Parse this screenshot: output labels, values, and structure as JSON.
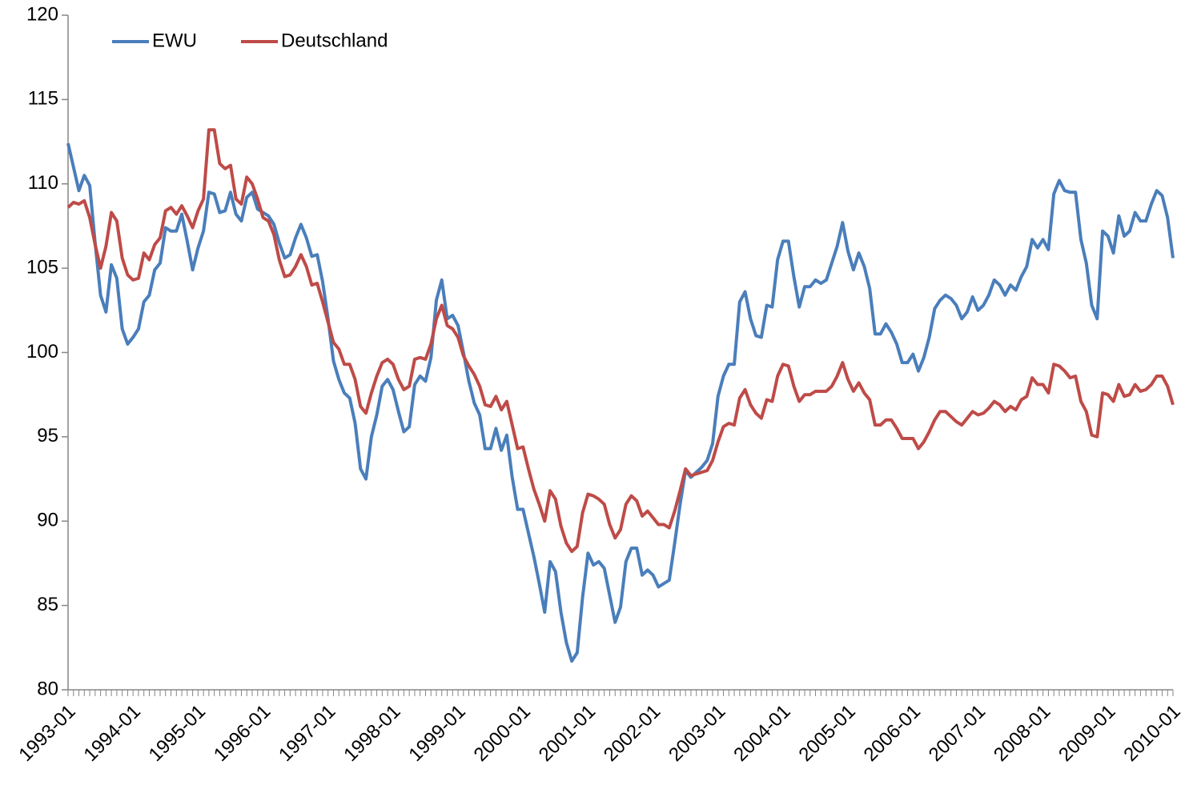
{
  "chart_data": {
    "type": "line",
    "categories": [
      "1993-01",
      null,
      null,
      null,
      null,
      null,
      null,
      null,
      null,
      null,
      null,
      null,
      "1994-01",
      null,
      null,
      null,
      null,
      null,
      null,
      null,
      null,
      null,
      null,
      null,
      "1995-01",
      null,
      null,
      null,
      null,
      null,
      null,
      null,
      null,
      null,
      null,
      null,
      "1996-01",
      null,
      null,
      null,
      null,
      null,
      null,
      null,
      null,
      null,
      null,
      null,
      "1997-01",
      null,
      null,
      null,
      null,
      null,
      null,
      null,
      null,
      null,
      null,
      null,
      "1998-01",
      null,
      null,
      null,
      null,
      null,
      null,
      null,
      null,
      null,
      null,
      null,
      "1999-01",
      null,
      null,
      null,
      null,
      null,
      null,
      null,
      null,
      null,
      null,
      null,
      "2000-01",
      null,
      null,
      null,
      null,
      null,
      null,
      null,
      null,
      null,
      null,
      null,
      "2001-01",
      null,
      null,
      null,
      null,
      null,
      null,
      null,
      null,
      null,
      null,
      null,
      "2002-01",
      null,
      null,
      null,
      null,
      null,
      null,
      null,
      null,
      null,
      null,
      null,
      "2003-01",
      null,
      null,
      null,
      null,
      null,
      null,
      null,
      null,
      null,
      null,
      null,
      "2004-01",
      null,
      null,
      null,
      null,
      null,
      null,
      null,
      null,
      null,
      null,
      null,
      "2005-01",
      null,
      null,
      null,
      null,
      null,
      null,
      null,
      null,
      null,
      null,
      null,
      "2006-01",
      null,
      null,
      null,
      null,
      null,
      null,
      null,
      null,
      null,
      null,
      null,
      "2007-01",
      null,
      null,
      null,
      null,
      null,
      null,
      null,
      null,
      null,
      null,
      null,
      "2008-01",
      null,
      null,
      null,
      null,
      null,
      null,
      null,
      null,
      null,
      null,
      null,
      "2009-01",
      null,
      null,
      null,
      null,
      null,
      null,
      null,
      null,
      null,
      null,
      null,
      "2010-01"
    ],
    "series": [
      {
        "name": "EWU",
        "color": "#4a7ebb",
        "values": [
          112.4,
          111,
          109.6,
          110.5,
          109.9,
          106.5,
          103.4,
          102.4,
          105.2,
          104.4,
          101.4,
          100.5,
          100.9,
          101.4,
          103,
          103.4,
          104.9,
          105.3,
          107.4,
          107.2,
          107.2,
          108.2,
          106.6,
          104.9,
          106.2,
          107.2,
          109.5,
          109.4,
          108.3,
          108.4,
          109.5,
          108.2,
          107.8,
          109.2,
          109.5,
          108.5,
          108.3,
          108.1,
          107.6,
          106.5,
          105.6,
          105.8,
          106.8,
          107.6,
          106.8,
          105.7,
          105.8,
          104.2,
          102,
          99.5,
          98.4,
          97.6,
          97.3,
          95.8,
          93.1,
          92.5,
          95,
          96.3,
          98,
          98.4,
          97.8,
          96.5,
          95.3,
          95.6,
          98.1,
          98.6,
          98.3,
          99.7,
          103.1,
          104.3,
          102,
          102.2,
          101.6,
          100,
          98.3,
          97,
          96.3,
          94.3,
          94.3,
          95.5,
          94.2,
          95.1,
          92.6,
          90.7,
          90.7,
          89.3,
          87.9,
          86.3,
          84.6,
          87.6,
          87,
          84.6,
          82.8,
          81.7,
          82.2,
          85.5,
          88.1,
          87.4,
          87.6,
          87.2,
          85.6,
          84,
          84.9,
          87.6,
          88.4,
          88.4,
          86.8,
          87.1,
          86.8,
          86.1,
          86.3,
          86.5,
          88.7,
          91,
          93,
          92.6,
          92.9,
          93.2,
          93.6,
          94.6,
          97.4,
          98.6,
          99.3,
          99.3,
          103,
          103.6,
          102,
          101,
          100.9,
          102.8,
          102.7,
          105.5,
          106.6,
          106.6,
          104.5,
          102.7,
          103.9,
          103.9,
          104.3,
          104.1,
          104.3,
          105.3,
          106.3,
          107.7,
          106,
          104.9,
          105.9,
          105.1,
          103.8,
          101.1,
          101.1,
          101.7,
          101.2,
          100.5,
          99.4,
          99.4,
          99.9,
          98.9,
          99.7,
          100.9,
          102.6,
          103.1,
          103.4,
          103.2,
          102.8,
          102,
          102.4,
          103.3,
          102.5,
          102.8,
          103.4,
          104.3,
          104,
          103.4,
          104,
          103.7,
          104.5,
          105.1,
          106.7,
          106.2,
          106.7,
          106.1,
          109.4,
          110.2,
          109.6,
          109.5,
          109.5,
          106.7,
          105.3,
          102.8,
          102,
          107.2,
          106.9,
          105.9,
          108.1,
          106.9,
          107.2,
          108.3,
          107.8,
          107.8,
          108.8,
          109.6,
          109.3,
          108,
          105.6
        ]
      },
      {
        "name": "Deutschland",
        "color": "#be4b48",
        "values": [
          108.6,
          108.9,
          108.8,
          109,
          108,
          106.4,
          105,
          106.3,
          108.3,
          107.8,
          105.6,
          104.6,
          104.3,
          104.4,
          105.9,
          105.5,
          106.4,
          106.8,
          108.4,
          108.6,
          108.2,
          108.7,
          108.1,
          107.4,
          108.4,
          109.1,
          113.2,
          113.2,
          111.2,
          110.9,
          111.1,
          109.1,
          108.8,
          110.4,
          110,
          109.1,
          108,
          107.8,
          107,
          105.5,
          104.5,
          104.6,
          105.1,
          105.8,
          105.1,
          104,
          104.1,
          103,
          101.8,
          100.6,
          100.2,
          99.3,
          99.3,
          98.4,
          96.8,
          96.4,
          97.6,
          98.6,
          99.4,
          99.6,
          99.3,
          98.4,
          97.8,
          98,
          99.6,
          99.7,
          99.6,
          100.5,
          102,
          102.8,
          101.6,
          101.4,
          100.9,
          99.8,
          99.2,
          98.7,
          98,
          96.9,
          96.8,
          97.4,
          96.6,
          97.1,
          95.7,
          94.3,
          94.4,
          93.1,
          91.9,
          91,
          90,
          91.8,
          91.3,
          89.7,
          88.7,
          88.2,
          88.5,
          90.5,
          91.6,
          91.5,
          91.3,
          91,
          89.8,
          89,
          89.5,
          91,
          91.5,
          91.2,
          90.3,
          90.6,
          90.2,
          89.8,
          89.8,
          89.6,
          90.6,
          91.8,
          93.1,
          92.7,
          92.8,
          92.9,
          93,
          93.6,
          94.7,
          95.6,
          95.8,
          95.7,
          97.3,
          97.8,
          96.9,
          96.4,
          96.1,
          97.2,
          97.1,
          98.6,
          99.3,
          99.2,
          98,
          97.1,
          97.5,
          97.5,
          97.7,
          97.7,
          97.7,
          98,
          98.6,
          99.4,
          98.4,
          97.7,
          98.2,
          97.6,
          97.2,
          95.7,
          95.7,
          96,
          96,
          95.5,
          94.9,
          94.9,
          94.9,
          94.3,
          94.7,
          95.3,
          96,
          96.5,
          96.5,
          96.2,
          95.9,
          95.7,
          96.1,
          96.5,
          96.3,
          96.4,
          96.7,
          97.1,
          96.9,
          96.5,
          96.8,
          96.6,
          97.2,
          97.4,
          98.5,
          98.1,
          98.1,
          97.6,
          99.3,
          99.2,
          98.9,
          98.5,
          98.6,
          97.1,
          96.5,
          95.1,
          95,
          97.6,
          97.5,
          97.1,
          98.1,
          97.4,
          97.5,
          98.1,
          97.7,
          97.8,
          98.1,
          98.6,
          98.6,
          98,
          96.9
        ]
      }
    ],
    "ylim": [
      80,
      120
    ],
    "yticks": [
      80,
      85,
      90,
      95,
      100,
      105,
      110,
      115,
      120
    ],
    "grid": false,
    "legend": "upper left"
  }
}
